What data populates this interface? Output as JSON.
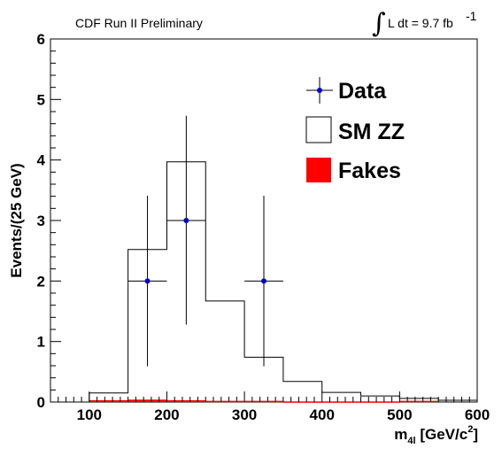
{
  "chart_data": {
    "type": "histogram",
    "header_left": "CDF Run II Preliminary",
    "header_right": {
      "integral_symbol": "∫",
      "text": "L dt = 9.7 fb",
      "superscript": "-1"
    },
    "xlabel": {
      "main": "m",
      "subscript": "4l",
      "unit_open": " [GeV/c",
      "unit_sup": "2",
      "unit_close": "]"
    },
    "ylabel": "Events/(25 GeV)",
    "xlim": [
      50,
      600
    ],
    "ylim": [
      0,
      6
    ],
    "x_ticks": [
      100,
      200,
      300,
      400,
      500,
      600
    ],
    "y_ticks": [
      0,
      1,
      2,
      3,
      4,
      5,
      6
    ],
    "bin_edges": [
      100,
      150,
      200,
      250,
      300,
      350,
      400,
      450,
      500,
      550,
      600
    ],
    "series": [
      {
        "name": "SM ZZ",
        "style": "outline",
        "color": "#000000",
        "values": [
          0.15,
          2.52,
          3.97,
          1.67,
          0.74,
          0.34,
          0.16,
          0.1,
          0.06,
          0.03
        ]
      },
      {
        "name": "Fakes",
        "style": "filled",
        "color": "#ff0000",
        "values": [
          0.03,
          0.04,
          0.03,
          0.02,
          0.02,
          0.01,
          0.01,
          0.01,
          0.02,
          0.0
        ]
      }
    ],
    "data_points": {
      "name": "Data",
      "color": "#0000cc",
      "points": [
        {
          "x": 175,
          "y": 2,
          "xerr": 25,
          "yerr_low": 1.41,
          "yerr_high": 1.41
        },
        {
          "x": 225,
          "y": 3,
          "xerr": 25,
          "yerr_low": 1.72,
          "yerr_high": 1.73
        },
        {
          "x": 325,
          "y": 2,
          "xerr": 25,
          "yerr_low": 1.41,
          "yerr_high": 1.41
        }
      ]
    },
    "legend": {
      "placement": "top-right",
      "entries": [
        {
          "label": "Data",
          "marker": "point"
        },
        {
          "label": "SM ZZ",
          "marker": "box-outline"
        },
        {
          "label": "Fakes",
          "marker": "box-filled",
          "color": "#ff0000"
        }
      ]
    }
  }
}
